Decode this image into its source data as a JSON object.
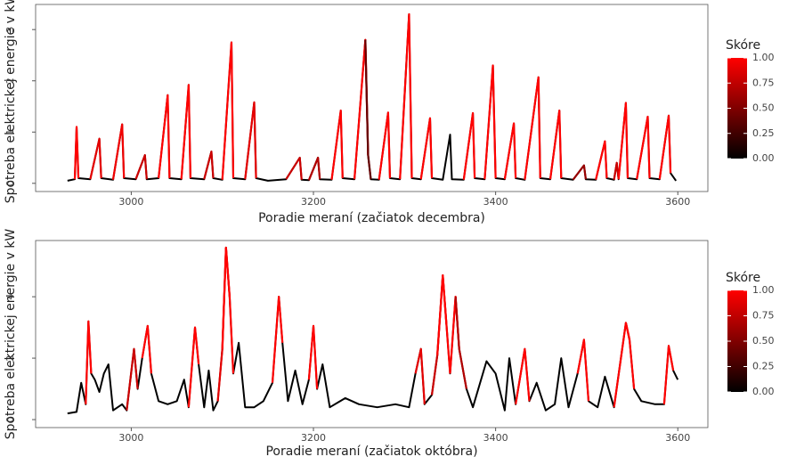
{
  "chart_data": [
    {
      "type": "line",
      "x_label": "Poradie meraní (začiatok decembra)",
      "y_label": "Spotreba elektrickej energie v kW",
      "xlim": [
        2895,
        3633
      ],
      "xticks": [
        3000,
        3200,
        3400,
        3600
      ],
      "ylim": [
        -0.16,
        3.49
      ],
      "yticks": [
        0,
        1,
        2,
        3
      ],
      "grid": false,
      "x": [
        2930,
        2938,
        2940,
        2942,
        2955,
        2965,
        2967,
        2980,
        2990,
        2992,
        3005,
        3015,
        3017,
        3030,
        3040,
        3042,
        3055,
        3063,
        3065,
        3080,
        3088,
        3090,
        3100,
        3110,
        3112,
        3125,
        3135,
        3137,
        3150,
        3170,
        3185,
        3187,
        3195,
        3205,
        3207,
        3220,
        3230,
        3232,
        3245,
        3257,
        3260,
        3263,
        3272,
        3282,
        3284,
        3295,
        3305,
        3308,
        3318,
        3328,
        3330,
        3342,
        3350,
        3352,
        3365,
        3375,
        3377,
        3388,
        3397,
        3400,
        3410,
        3420,
        3422,
        3432,
        3447,
        3449,
        3460,
        3470,
        3472,
        3485,
        3497,
        3499,
        3510,
        3520,
        3522,
        3530,
        3533,
        3535,
        3543,
        3545,
        3555,
        3567,
        3569,
        3580,
        3590,
        3592,
        3598
      ],
      "values": [
        0.05,
        0.08,
        1.1,
        0.1,
        0.08,
        0.87,
        0.1,
        0.07,
        1.15,
        0.1,
        0.08,
        0.55,
        0.08,
        0.1,
        1.72,
        0.1,
        0.08,
        1.92,
        0.1,
        0.08,
        0.62,
        0.1,
        0.07,
        2.75,
        0.1,
        0.08,
        1.58,
        0.1,
        0.05,
        0.08,
        0.5,
        0.07,
        0.06,
        0.5,
        0.08,
        0.07,
        1.42,
        0.1,
        0.08,
        2.8,
        0.55,
        0.08,
        0.07,
        1.38,
        0.1,
        0.08,
        3.3,
        0.1,
        0.08,
        1.27,
        0.1,
        0.07,
        0.95,
        0.08,
        0.07,
        1.37,
        0.1,
        0.08,
        2.3,
        0.1,
        0.08,
        1.17,
        0.1,
        0.07,
        2.07,
        0.1,
        0.08,
        1.42,
        0.1,
        0.07,
        0.35,
        0.08,
        0.07,
        0.82,
        0.1,
        0.07,
        0.4,
        0.08,
        1.57,
        0.1,
        0.08,
        1.3,
        0.1,
        0.08,
        1.32,
        0.2,
        0.05
      ],
      "scores": [
        0,
        0,
        1,
        0,
        0,
        0.9,
        0,
        0,
        0.95,
        0,
        0,
        0.8,
        0,
        0,
        1,
        0,
        0,
        1,
        0,
        0,
        0.8,
        0,
        0,
        1,
        0,
        0,
        0.9,
        0,
        0,
        0,
        0.8,
        0,
        0,
        0.7,
        0,
        0,
        1,
        0,
        0,
        1,
        0.4,
        0,
        0,
        1,
        0,
        0,
        1,
        0,
        0,
        1,
        0,
        0,
        0,
        0,
        0,
        1,
        0,
        0,
        1,
        0,
        0,
        1,
        0,
        0,
        1,
        0,
        0,
        1,
        0,
        0,
        0.6,
        0,
        0,
        1,
        0,
        0,
        0.8,
        0,
        1,
        0,
        0,
        1,
        0,
        0,
        1,
        0,
        0
      ],
      "colorbar": {
        "title": "Skóre",
        "low_color": "#000000",
        "high_color": "#ff0000",
        "ticks": [
          {
            "value": 0,
            "label": "0.00"
          },
          {
            "value": 0.25,
            "label": "0.25"
          },
          {
            "value": 0.5,
            "label": "0.50"
          },
          {
            "value": 0.75,
            "label": "0.75"
          },
          {
            "value": 1,
            "label": "1.00"
          }
        ]
      }
    },
    {
      "type": "line",
      "x_label": "Poradie meraní (začiatok októbra)",
      "y_label": "Spotreba elektrickej energie v kW",
      "xlim": [
        2895,
        3633
      ],
      "xticks": [
        3000,
        3200,
        3400,
        3600
      ],
      "ylim": [
        -0.26,
        5.83
      ],
      "yticks": [
        0,
        2,
        4
      ],
      "grid": false,
      "x": [
        2930,
        2940,
        2945,
        2950,
        2953,
        2956,
        2960,
        2965,
        2970,
        2975,
        2980,
        2990,
        2995,
        3003,
        3007,
        3012,
        3018,
        3022,
        3030,
        3040,
        3050,
        3058,
        3063,
        3070,
        3074,
        3080,
        3085,
        3090,
        3095,
        3100,
        3104,
        3108,
        3112,
        3118,
        3125,
        3135,
        3145,
        3155,
        3162,
        3166,
        3172,
        3180,
        3188,
        3195,
        3200,
        3204,
        3210,
        3218,
        3235,
        3250,
        3270,
        3290,
        3305,
        3312,
        3318,
        3322,
        3330,
        3336,
        3342,
        3346,
        3350,
        3356,
        3360,
        3368,
        3375,
        3390,
        3400,
        3410,
        3415,
        3422,
        3432,
        3437,
        3445,
        3455,
        3465,
        3472,
        3480,
        3490,
        3497,
        3502,
        3512,
        3520,
        3530,
        3543,
        3547,
        3552,
        3560,
        3575,
        3585,
        3590,
        3595,
        3600
      ],
      "values": [
        0.2,
        0.25,
        1.2,
        0.5,
        3.2,
        1.5,
        1.3,
        0.9,
        1.5,
        1.8,
        0.3,
        0.5,
        0.3,
        2.3,
        1.0,
        2.0,
        3.05,
        1.5,
        0.6,
        0.5,
        0.6,
        1.3,
        0.4,
        3.0,
        1.8,
        0.4,
        1.6,
        0.3,
        0.6,
        2.3,
        5.6,
        4.0,
        1.5,
        2.5,
        0.4,
        0.4,
        0.6,
        1.2,
        4.0,
        2.5,
        0.6,
        1.6,
        0.5,
        1.3,
        3.05,
        1.0,
        1.8,
        0.4,
        0.7,
        0.5,
        0.4,
        0.5,
        0.4,
        1.5,
        2.3,
        0.5,
        0.8,
        2.1,
        4.7,
        3.1,
        1.5,
        4.0,
        2.3,
        1.0,
        0.4,
        1.9,
        1.5,
        0.3,
        2.0,
        0.5,
        2.3,
        0.6,
        1.2,
        0.3,
        0.5,
        2.0,
        0.4,
        1.5,
        2.6,
        0.6,
        0.4,
        1.4,
        0.4,
        3.15,
        2.6,
        1.0,
        0.6,
        0.5,
        0.5,
        2.4,
        1.6,
        1.3
      ],
      "scores": [
        0,
        0,
        0,
        0,
        1,
        0,
        0,
        0,
        0,
        0,
        0,
        0,
        0,
        0.8,
        0,
        0,
        1,
        0,
        0,
        0,
        0,
        0,
        0,
        1,
        0,
        0,
        0,
        0,
        0,
        0.9,
        1,
        1,
        0,
        0,
        0,
        0,
        0,
        0,
        1,
        0,
        0,
        0,
        0,
        0,
        1,
        0,
        0,
        0,
        0,
        0,
        0,
        0,
        0,
        0,
        0.9,
        0,
        0,
        0.8,
        1,
        1,
        0,
        1,
        0.7,
        0,
        0,
        0,
        0,
        0,
        0,
        0,
        1,
        0,
        0,
        0,
        0,
        0,
        0,
        0,
        1,
        0,
        0,
        0,
        0,
        1,
        1,
        0,
        0,
        0,
        0,
        1,
        0,
        0
      ],
      "colorbar": {
        "title": "Skóre",
        "low_color": "#000000",
        "high_color": "#ff0000",
        "ticks": [
          {
            "value": 0,
            "label": "0.00"
          },
          {
            "value": 0.25,
            "label": "0.25"
          },
          {
            "value": 0.5,
            "label": "0.50"
          },
          {
            "value": 0.75,
            "label": "0.75"
          },
          {
            "value": 1,
            "label": "1.00"
          }
        ]
      }
    }
  ]
}
